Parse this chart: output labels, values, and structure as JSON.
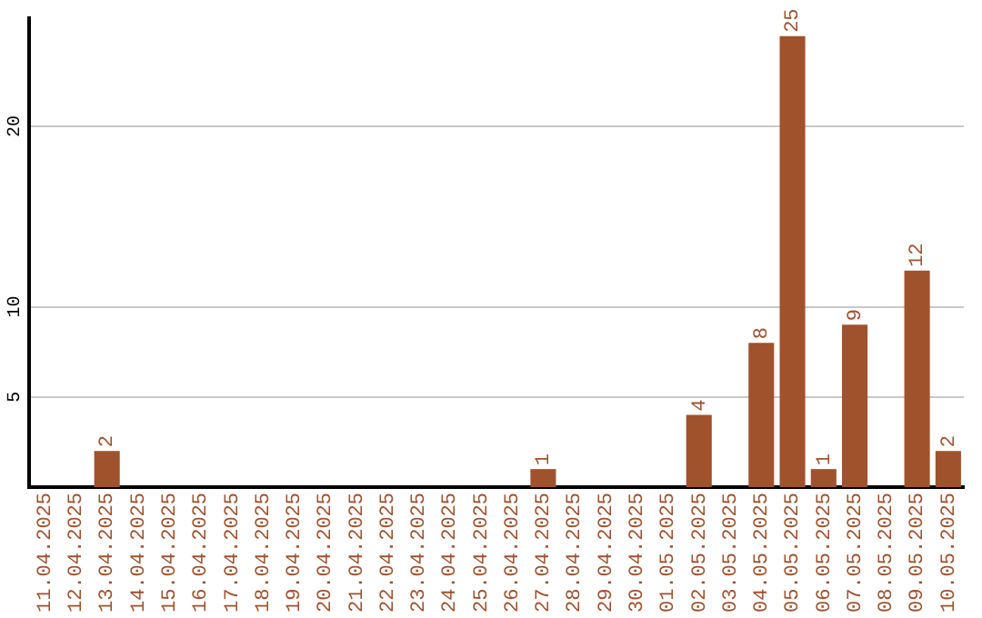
{
  "chart_data": {
    "type": "bar",
    "categories": [
      "11.04.2025",
      "12.04.2025",
      "13.04.2025",
      "14.04.2025",
      "15.04.2025",
      "16.04.2025",
      "17.04.2025",
      "18.04.2025",
      "19.04.2025",
      "20.04.2025",
      "21.04.2025",
      "22.04.2025",
      "23.04.2025",
      "24.04.2025",
      "25.04.2025",
      "26.04.2025",
      "27.04.2025",
      "28.04.2025",
      "29.04.2025",
      "30.04.2025",
      "01.05.2025",
      "02.05.2025",
      "03.05.2025",
      "04.05.2025",
      "05.05.2025",
      "06.05.2025",
      "07.05.2025",
      "08.05.2025",
      "09.05.2025",
      "10.05.2025"
    ],
    "values": [
      0,
      0,
      2,
      0,
      0,
      0,
      0,
      0,
      0,
      0,
      0,
      0,
      0,
      0,
      0,
      0,
      1,
      0,
      0,
      0,
      0,
      4,
      0,
      8,
      25,
      1,
      9,
      0,
      12,
      2
    ],
    "value_labels": [
      null,
      null,
      "2",
      null,
      null,
      null,
      null,
      null,
      null,
      null,
      null,
      null,
      null,
      null,
      null,
      null,
      "1",
      null,
      null,
      null,
      null,
      "4",
      null,
      "8",
      "25",
      "1",
      "9",
      null,
      "12",
      "2"
    ],
    "color": "#a0522d",
    "ylim": [
      0,
      26
    ],
    "yticks": [
      5,
      10,
      20
    ],
    "grid": "y",
    "legend": false
  }
}
